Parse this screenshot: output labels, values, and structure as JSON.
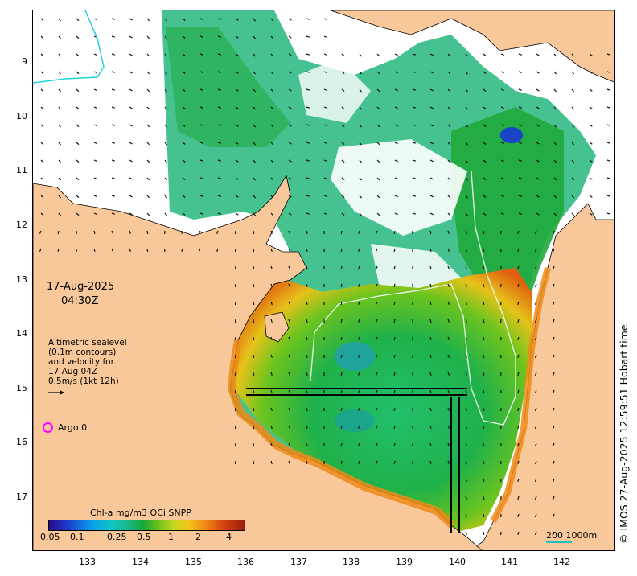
{
  "map": {
    "x_ticks": [
      "133",
      "134",
      "135",
      "136",
      "137",
      "138",
      "139",
      "140",
      "141",
      "142"
    ],
    "y_ticks": [
      "9",
      "10",
      "11",
      "12",
      "13",
      "14",
      "15",
      "16",
      "17"
    ]
  },
  "timestamp": {
    "date": "17-Aug-2025",
    "time": "04:30Z"
  },
  "legend": {
    "line1": "Altimetric sealevel",
    "line2": "(0.1m contours)",
    "line3": "and velocity for",
    "line4": "17 Aug 04Z",
    "line5": "0.5m/s (1kt 12h)"
  },
  "argo": {
    "label": "Argo 0",
    "color": "#ff00ff"
  },
  "colorbar": {
    "title": "Chl-a mg/m3 OCi SNPP",
    "ticks": [
      "0.05",
      "0.1",
      "0.25",
      "0.5",
      "1",
      "2",
      "4"
    ]
  },
  "scale": {
    "label": "200  1000m"
  },
  "credit": "© IMOS 27-Aug-2025 12:59:51 Hobart time",
  "colors": {
    "land": "#f8c89a",
    "ocean": "#ffffff",
    "vectors": "#111111",
    "contour": "#e8f6e8"
  }
}
